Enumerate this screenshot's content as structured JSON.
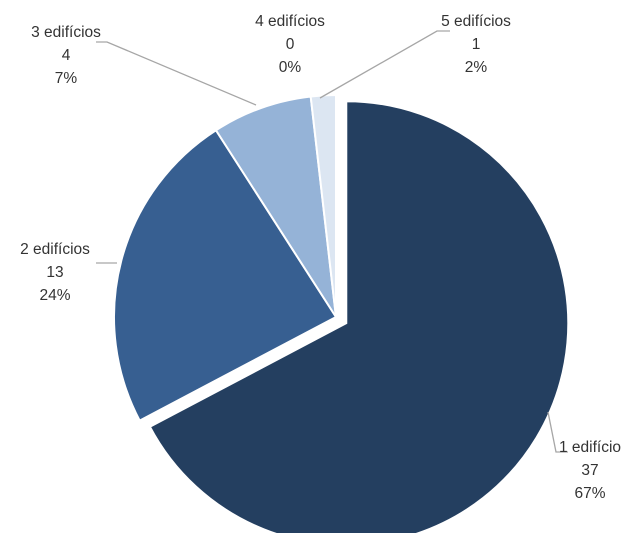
{
  "chart_data": {
    "type": "pie",
    "title": "",
    "categories": [
      "1 edifício",
      "2 edifícios",
      "3 edifícios",
      "4 edifícios",
      "5 edifícios"
    ],
    "values": [
      37,
      13,
      4,
      0,
      1
    ],
    "value_labels": [
      "37",
      "13",
      "4",
      "0",
      "1"
    ],
    "percent_labels": [
      "67%",
      "24%",
      "7%",
      "0%",
      "2%"
    ],
    "colors": [
      "#243f60",
      "#375f91",
      "#95b3d7",
      "#c6d9f0",
      "#dce6f2"
    ],
    "exploded_slice": "1 edifício",
    "legend": "none"
  }
}
